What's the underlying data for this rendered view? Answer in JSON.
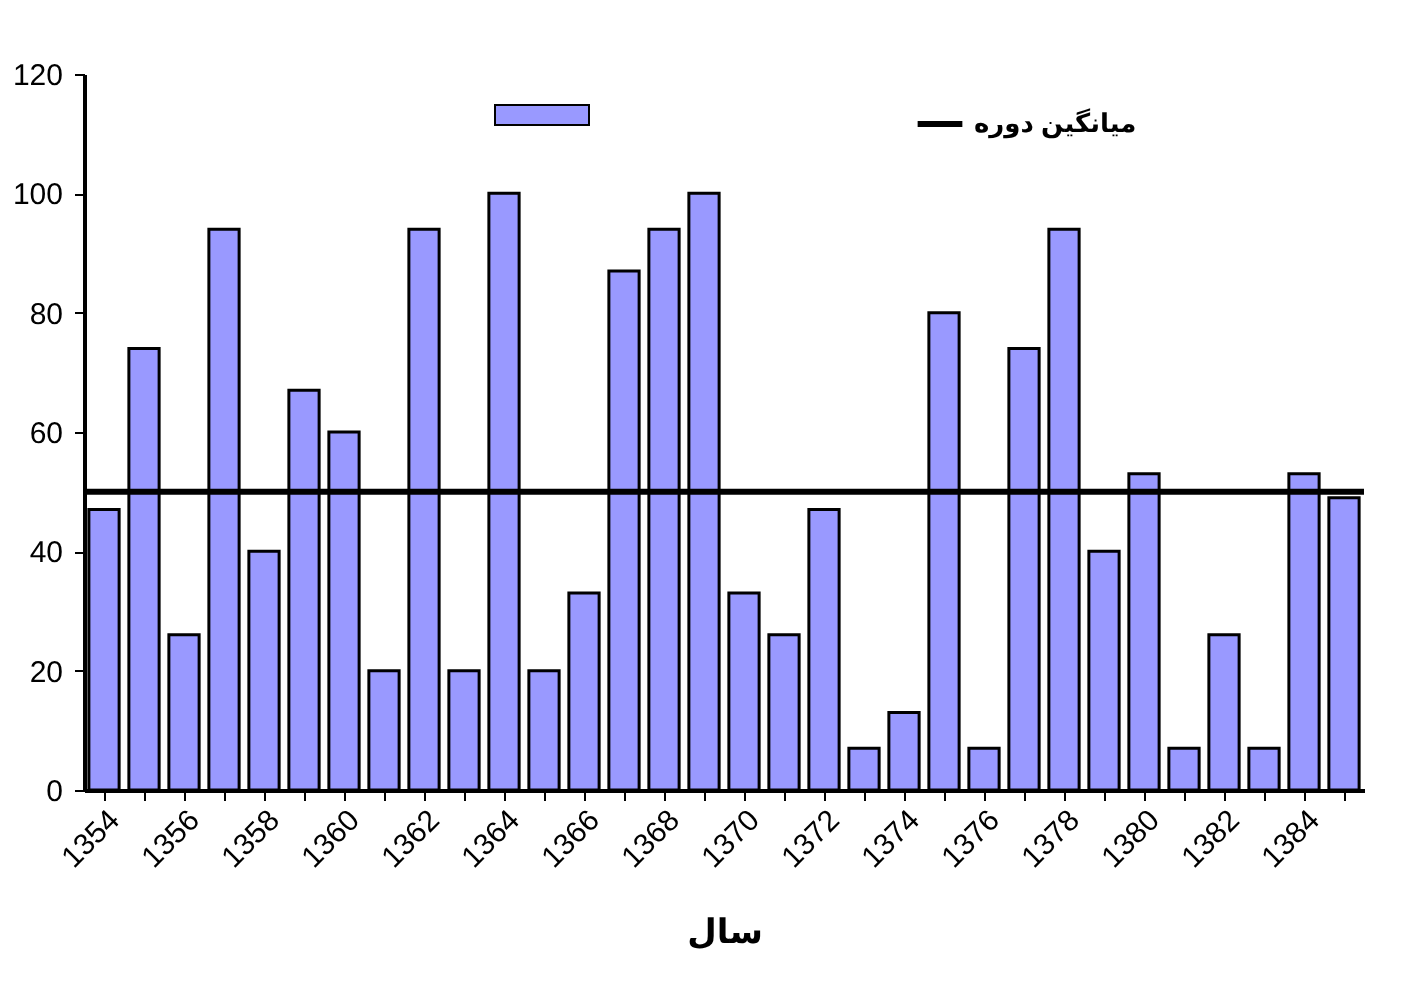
{
  "chart_data": {
    "type": "bar",
    "xlabel": "سال",
    "categories": [
      "1354",
      null,
      "1356",
      null,
      "1358",
      null,
      "1360",
      null,
      "1362",
      null,
      "1364",
      null,
      "1366",
      null,
      "1368",
      null,
      "1370",
      null,
      "1372",
      null,
      "1374",
      null,
      "1376",
      null,
      "1378",
      null,
      "1380",
      null,
      "1382",
      null,
      "1384",
      null
    ],
    "series": [
      {
        "color": "#9999ff",
        "values": [
          47,
          74,
          26,
          94,
          40,
          67,
          60,
          20,
          94,
          20,
          100,
          20,
          33,
          87,
          94,
          100,
          33,
          26,
          47,
          7,
          13,
          80,
          7,
          74,
          94,
          40,
          53,
          7,
          26,
          7,
          53,
          49
        ]
      }
    ],
    "ylim": [
      0,
      120
    ],
    "yticks": [
      0,
      20,
      40,
      60,
      80,
      100,
      120
    ],
    "grid": false,
    "legend": "top",
    "ref_lines": [
      {
        "axis": "y",
        "value": 50,
        "label": "میانگین دوره",
        "color": "#000000"
      }
    ]
  }
}
